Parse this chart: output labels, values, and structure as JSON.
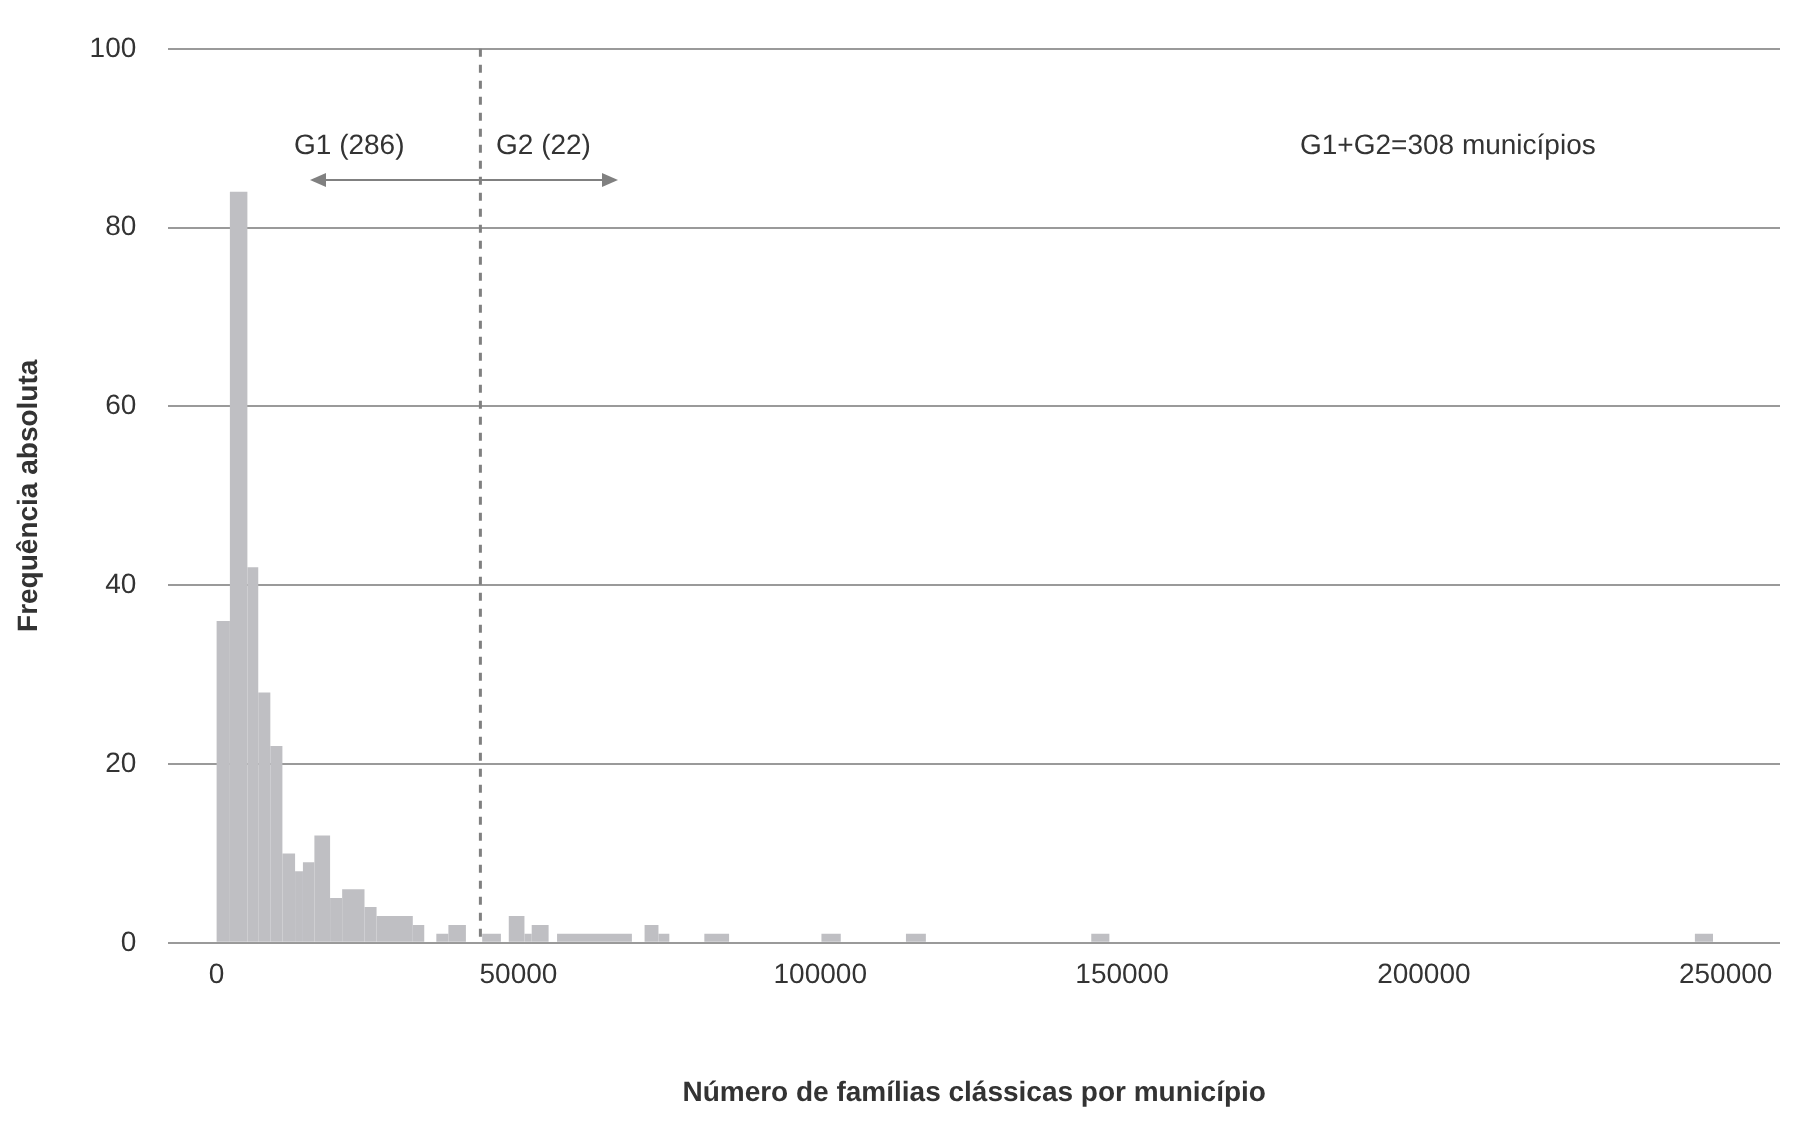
{
  "chart_data": {
    "type": "histogram",
    "xlabel": "Número de famílias clássicas por município",
    "ylabel": "Frequência absoluta",
    "bins": [
      0,
      2200,
      5100,
      6900,
      8900,
      10900,
      13000,
      14300,
      16200,
      18800,
      20800,
      24500,
      26500,
      32500,
      34400,
      36400,
      38400,
      41300,
      44000,
      47100,
      48400,
      51000,
      52200,
      55000,
      56400,
      68800,
      70900,
      73200,
      75000,
      80800,
      84900,
      100200,
      103400,
      114200,
      117500,
      144900,
      147900,
      244900,
      247900
    ],
    "values": [
      36,
      84,
      42,
      28,
      22,
      10,
      8,
      9,
      12,
      5,
      6,
      4,
      3,
      2,
      0,
      1,
      2,
      0,
      1,
      0,
      3,
      1,
      2,
      0,
      1,
      0,
      2,
      1,
      0,
      1,
      0,
      1,
      0,
      1,
      0,
      1,
      0,
      1
    ],
    "color": "#bfbfc3",
    "xlim": [
      -8000,
      259000
    ],
    "xticks": [
      0,
      50000,
      100000,
      150000,
      200000,
      250000
    ],
    "ylim": [
      0,
      100
    ],
    "yticks": [
      0,
      20,
      40,
      60,
      80,
      100
    ],
    "grid": "y",
    "legend": false,
    "ref_lines": [
      {
        "axis": "x",
        "value": 43700,
        "color": "#808080",
        "line_style": "dashed"
      }
    ],
    "annotations": [
      "G1 (286)",
      "G2 (22)",
      "G1+G2=308 municípios"
    ]
  }
}
